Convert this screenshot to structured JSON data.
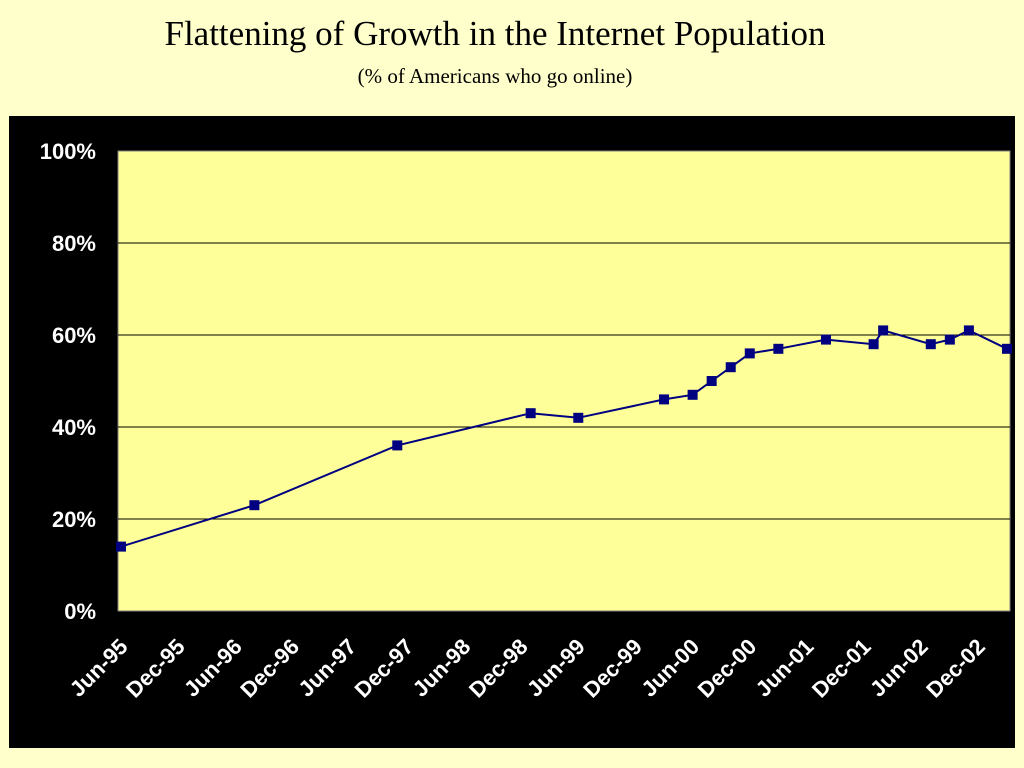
{
  "chart_data": {
    "type": "line",
    "title": "Flattening of Growth in the Internet Population",
    "subtitle": "(% of Americans who go online)",
    "xlabel": "",
    "ylabel": "",
    "ylim": [
      0,
      100
    ],
    "yticks": [
      "0%",
      "20%",
      "40%",
      "60%",
      "80%",
      "100%"
    ],
    "xticks": [
      "Jun-95",
      "Dec-95",
      "Jun-96",
      "Dec-96",
      "Jun-97",
      "Dec-97",
      "Jun-98",
      "Dec-98",
      "Jun-99",
      "Dec-99",
      "Jun-00",
      "Dec-00",
      "Jun-01",
      "Dec-01",
      "Jun-02",
      "Dec-02"
    ],
    "grid": true,
    "colors": {
      "line": "#000080",
      "marker": "#000080",
      "plot_bg": "#ffff99",
      "panel_bg": "#000000",
      "page_bg": "#ffffcc"
    },
    "series": [
      {
        "x": [
          "Jun-95",
          "Aug-96",
          "Nov-97",
          "Jan-99",
          "Jun-99",
          "Mar-00",
          "Jun-00",
          "Aug-00",
          "Oct-00",
          "Dec-00",
          "Mar-01",
          "Aug-01",
          "Jan-02",
          "Feb-02",
          "Jul-02",
          "Sep-02",
          "Nov-02",
          "Mar-03"
        ],
        "values": [
          14,
          23,
          36,
          43,
          42,
          46,
          47,
          50,
          53,
          56,
          57,
          59,
          58,
          61,
          58,
          59,
          61,
          57
        ]
      }
    ]
  }
}
